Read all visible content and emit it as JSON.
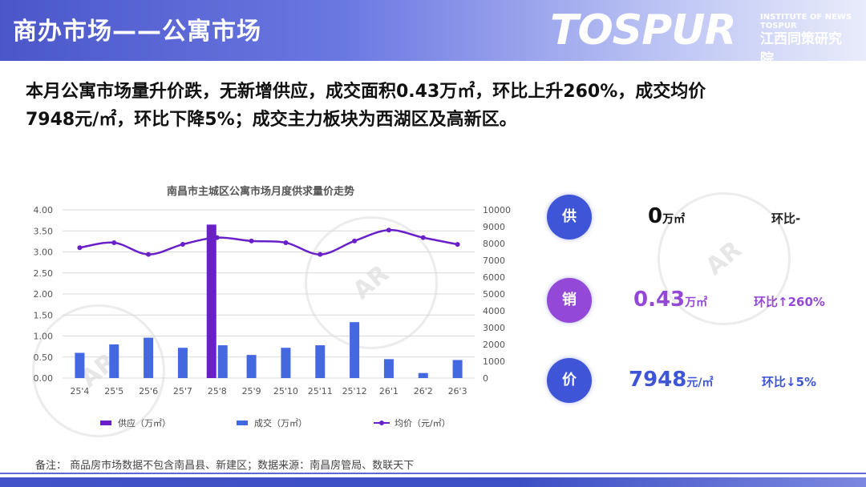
{
  "header": {
    "title": "商办市场——公寓市场",
    "logo_word": "TOSPUR",
    "logo_sub_en": "INSTITUTE OF NEWS TOSPUR",
    "logo_sub_cn": "江西同策研究院"
  },
  "headline": {
    "line1": "本月公寓市场量升价跌，无新增供应，成交面积0.43万㎡，环比上升260%，成交均价",
    "line2": "7948元/㎡，环比下降5%；成交主力板块为西湖区及高新区。"
  },
  "chart_data": {
    "type": "bar",
    "title": "南昌市主城区公寓市场月度供求量价走势",
    "categories": [
      "25'4",
      "25'5",
      "25'6",
      "25'7",
      "25'8",
      "25'9",
      "25'10",
      "25'11",
      "25'12",
      "26'1",
      "26'2",
      "26'3"
    ],
    "series": [
      {
        "name": "供应（万㎡）",
        "type": "bar",
        "axis": "left",
        "color": "#6a20c8",
        "values": [
          0,
          0,
          0,
          0,
          3.65,
          0,
          0,
          0,
          0,
          0,
          0,
          0
        ]
      },
      {
        "name": "成交（万㎡）",
        "type": "bar",
        "axis": "left",
        "color": "#4468e0",
        "values": [
          0.6,
          0.8,
          0.96,
          0.72,
          0.78,
          0.55,
          0.72,
          0.78,
          1.33,
          0.45,
          0.12,
          0.43
        ]
      },
      {
        "name": "均价（元/㎡）",
        "type": "line",
        "axis": "right",
        "color": "#6a20c8",
        "values": [
          7750,
          8050,
          7350,
          7950,
          8350,
          8150,
          8050,
          7350,
          8150,
          8800,
          8350,
          7948
        ]
      }
    ],
    "y_left": {
      "min": 0,
      "max": 4,
      "ticks": [
        "0.00",
        "0.50",
        "1.00",
        "1.50",
        "2.00",
        "2.50",
        "3.00",
        "3.50",
        "4.00"
      ]
    },
    "y_right": {
      "min": 0,
      "max": 10000,
      "ticks": [
        "0",
        "1000",
        "2000",
        "3000",
        "4000",
        "5000",
        "6000",
        "7000",
        "8000",
        "9000",
        "10000"
      ]
    },
    "grid": true,
    "legend_position": "bottom"
  },
  "kpis": [
    {
      "label": "供",
      "value": "0",
      "unit": "万㎡",
      "change": "环比-",
      "circle_color": "#3f55d8",
      "value_color": "#111111",
      "change_color": "#222222"
    },
    {
      "label": "销",
      "value": "0.43",
      "unit": "万㎡",
      "change": "环比↑260%",
      "circle_color": "#9448d8",
      "value_color": "#9448d8",
      "change_color": "#9448d8"
    },
    {
      "label": "价",
      "value": "7948",
      "unit": "元/㎡",
      "change": "环比↓5%",
      "circle_color": "#3f55d8",
      "value_color": "#3f55d8",
      "change_color": "#3f55d8"
    }
  ],
  "footnote": "备注：  商品房市场数据不包含南昌县、新建区；数据来源：南昌房管局、数联天下"
}
